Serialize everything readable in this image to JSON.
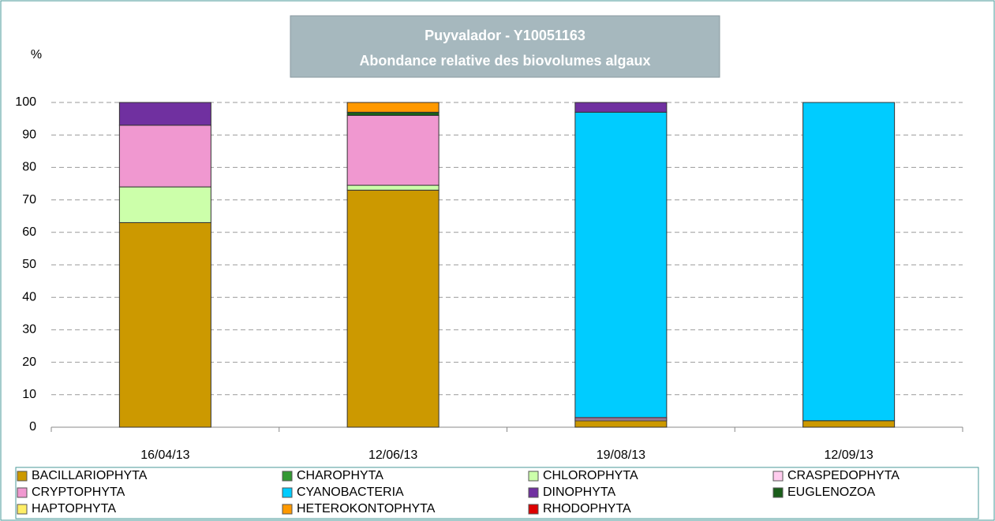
{
  "chart_data": {
    "type": "stacked_bar",
    "title": "Puyvalador - Y10051163",
    "subtitle": "Abondance relative des biovolumes algaux",
    "y_label": "%",
    "categories": [
      "16/04/13",
      "12/06/13",
      "19/08/13",
      "12/09/13"
    ],
    "ylim": [
      0,
      100
    ],
    "yticks": [
      0,
      10,
      20,
      30,
      40,
      50,
      60,
      70,
      80,
      90,
      100
    ],
    "grid": true,
    "series": [
      {
        "name": "BACILLARIOPHYTA",
        "color": "#cc9900",
        "values": [
          63,
          73,
          2,
          2
        ]
      },
      {
        "name": "CHAROPHYTA",
        "color": "#339933",
        "values": [
          0,
          0,
          0,
          0
        ]
      },
      {
        "name": "CHLOROPHYTA",
        "color": "#ccffaa",
        "values": [
          11,
          1.5,
          0,
          0
        ]
      },
      {
        "name": "CRASPEDOPHYTA",
        "color": "#ffccee",
        "values": [
          0,
          0,
          0.5,
          0
        ]
      },
      {
        "name": "CRYPTOPHYTA",
        "color": "#f098d0",
        "values": [
          19,
          21.5,
          0.5,
          0
        ]
      },
      {
        "name": "CYANOBACTERIA",
        "color": "#00ccff",
        "values": [
          0,
          0,
          94,
          98
        ]
      },
      {
        "name": "DINOPHYTA",
        "color": "#7030a0",
        "values": [
          7,
          0,
          3,
          0
        ]
      },
      {
        "name": "EUGLENOZOA",
        "color": "#1a5e1a",
        "values": [
          0,
          1,
          0,
          0
        ]
      },
      {
        "name": "HAPTOPHYTA",
        "color": "#ffee66",
        "values": [
          0,
          0,
          0,
          0
        ]
      },
      {
        "name": "HETEROKONTOPHYTA",
        "color": "#ff9900",
        "values": [
          0,
          3,
          0,
          0
        ]
      },
      {
        "name": "RHODOPHYTA",
        "color": "#dd0000",
        "values": [
          0,
          0,
          0,
          0
        ]
      }
    ]
  }
}
